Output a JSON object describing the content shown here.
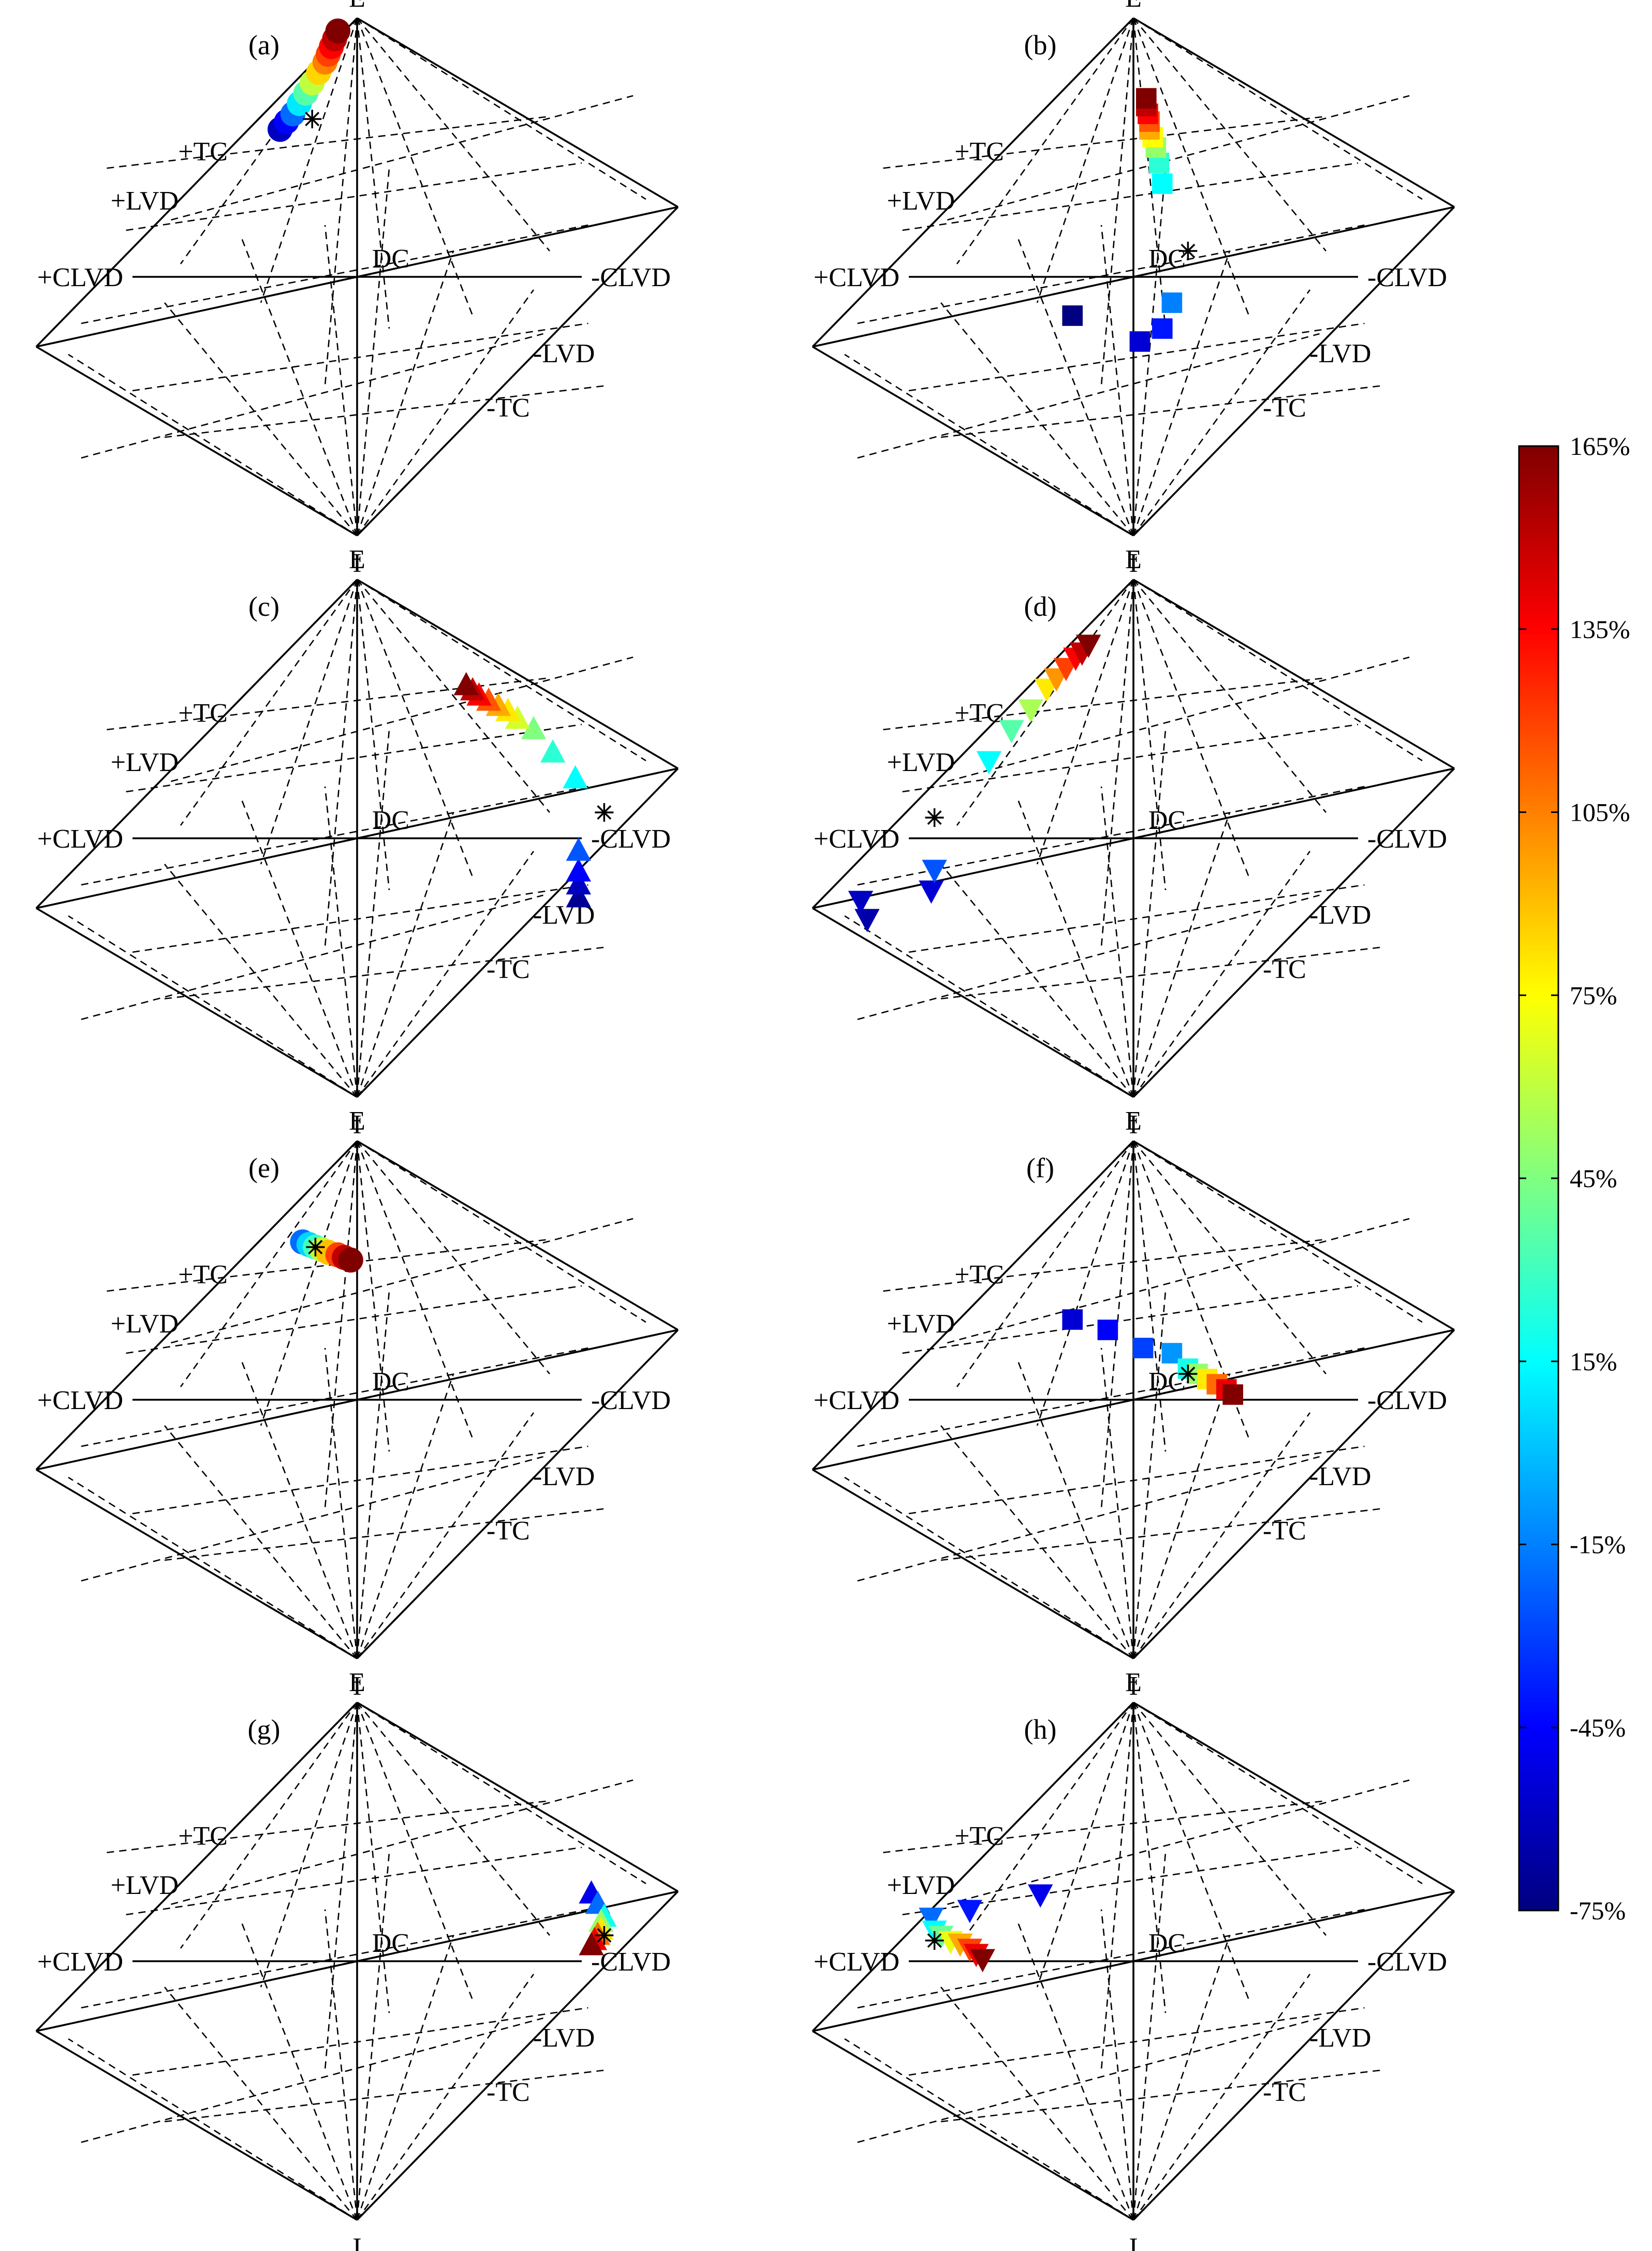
{
  "labels": {
    "top": "E",
    "bottom": "I",
    "left": "+CLVD",
    "right": "-CLVD",
    "center": "DC",
    "upper_left_1": "+TC",
    "upper_left_2": "+LVD",
    "lower_right_1": "-LVD",
    "lower_right_2": "-TC"
  },
  "colorbar": {
    "ticks": [
      "165%",
      "135%",
      "105%",
      "75%",
      "45%",
      "15%",
      "-15%",
      "-45%",
      "-75%"
    ],
    "stops": [
      "#800000",
      "#ff0000",
      "#ff8000",
      "#ffff00",
      "#80ff80",
      "#00ffff",
      "#0080ff",
      "#0000ff",
      "#000080"
    ]
  },
  "panels": [
    {
      "id": "(a)",
      "marker": "circle",
      "points": [
        [
          -0.06,
          0.95,
          165
        ],
        [
          -0.07,
          0.92,
          150
        ],
        [
          -0.08,
          0.89,
          135
        ],
        [
          -0.09,
          0.86,
          120
        ],
        [
          -0.1,
          0.83,
          105
        ],
        [
          -0.12,
          0.79,
          85
        ],
        [
          -0.14,
          0.75,
          60
        ],
        [
          -0.16,
          0.71,
          35
        ],
        [
          -0.18,
          0.67,
          10
        ],
        [
          -0.2,
          0.63,
          -20
        ],
        [
          -0.22,
          0.6,
          -45
        ],
        [
          -0.24,
          0.57,
          -60
        ]
      ],
      "star": [
        -0.14,
        0.61
      ]
    },
    {
      "id": "(b)",
      "marker": "square",
      "points": [
        [
          0.04,
          0.69,
          165
        ],
        [
          0.04,
          0.66,
          150
        ],
        [
          0.045,
          0.63,
          135
        ],
        [
          0.05,
          0.6,
          115
        ],
        [
          0.05,
          0.57,
          95
        ],
        [
          0.06,
          0.54,
          75
        ],
        [
          0.07,
          0.5,
          50
        ],
        [
          0.08,
          0.44,
          25
        ],
        [
          0.09,
          0.36,
          15
        ],
        [
          0.12,
          -0.1,
          -15
        ],
        [
          0.09,
          -0.2,
          -40
        ],
        [
          0.02,
          -0.25,
          -55
        ],
        [
          -0.19,
          -0.15,
          -75
        ]
      ],
      "star": [
        0.17,
        0.1
      ]
    },
    {
      "id": "(c)",
      "marker": "triangle-up",
      "points": [
        [
          0.34,
          0.59,
          165
        ],
        [
          0.36,
          0.57,
          150
        ],
        [
          0.38,
          0.55,
          135
        ],
        [
          0.41,
          0.53,
          115
        ],
        [
          0.44,
          0.51,
          95
        ],
        [
          0.47,
          0.49,
          80
        ],
        [
          0.5,
          0.46,
          65
        ],
        [
          0.55,
          0.42,
          45
        ],
        [
          0.61,
          0.33,
          25
        ],
        [
          0.68,
          0.23,
          15
        ],
        [
          0.69,
          -0.05,
          -25
        ],
        [
          0.69,
          -0.13,
          -45
        ],
        [
          0.69,
          -0.18,
          -60
        ],
        [
          0.69,
          -0.23,
          -70
        ]
      ],
      "star": [
        0.77,
        0.1
      ]
    },
    {
      "id": "(d)",
      "marker": "triangle-down",
      "points": [
        [
          -0.14,
          0.75,
          165
        ],
        [
          -0.16,
          0.72,
          150
        ],
        [
          -0.18,
          0.7,
          135
        ],
        [
          -0.21,
          0.66,
          120
        ],
        [
          -0.24,
          0.62,
          100
        ],
        [
          -0.27,
          0.58,
          80
        ],
        [
          -0.32,
          0.5,
          55
        ],
        [
          -0.38,
          0.42,
          35
        ],
        [
          -0.45,
          0.3,
          15
        ],
        [
          -0.62,
          -0.12,
          -25
        ],
        [
          -0.63,
          -0.2,
          -55
        ],
        [
          -0.85,
          -0.24,
          -60
        ],
        [
          -0.83,
          -0.31,
          -65
        ]
      ],
      "star": [
        -0.62,
        0.08
      ]
    },
    {
      "id": "(e)",
      "marker": "circle",
      "points": [
        [
          -0.02,
          0.54,
          165
        ],
        [
          -0.04,
          0.55,
          150
        ],
        [
          -0.06,
          0.56,
          120
        ],
        [
          -0.09,
          0.57,
          90
        ],
        [
          -0.11,
          0.58,
          60
        ],
        [
          -0.13,
          0.59,
          30
        ],
        [
          -0.15,
          0.6,
          5
        ],
        [
          -0.17,
          0.61,
          -20
        ]
      ],
      "star": [
        -0.13,
        0.59
      ]
    },
    {
      "id": "(f)",
      "marker": "square",
      "points": [
        [
          0.31,
          0.02,
          165
        ],
        [
          0.29,
          0.04,
          140
        ],
        [
          0.26,
          0.06,
          110
        ],
        [
          0.23,
          0.08,
          80
        ],
        [
          0.2,
          0.1,
          50
        ],
        [
          0.17,
          0.12,
          20
        ],
        [
          0.12,
          0.18,
          -10
        ],
        [
          0.03,
          0.2,
          -30
        ],
        [
          -0.08,
          0.27,
          -45
        ],
        [
          -0.19,
          0.31,
          -55
        ]
      ],
      "star": [
        0.17,
        0.1
      ]
    },
    {
      "id": "(g)",
      "marker": "triangle-up",
      "points": [
        [
          0.73,
          0.06,
          165
        ],
        [
          0.74,
          0.08,
          140
        ],
        [
          0.75,
          0.1,
          110
        ],
        [
          0.76,
          0.12,
          80
        ],
        [
          0.76,
          0.15,
          50
        ],
        [
          0.77,
          0.17,
          20
        ],
        [
          0.75,
          0.22,
          -20
        ],
        [
          0.73,
          0.26,
          -50
        ]
      ],
      "star": [
        0.77,
        0.1
      ]
    },
    {
      "id": "(h)",
      "marker": "triangle-down",
      "points": [
        [
          -0.47,
          0.01,
          165
        ],
        [
          -0.49,
          0.03,
          140
        ],
        [
          -0.51,
          0.05,
          120
        ],
        [
          -0.54,
          0.07,
          95
        ],
        [
          -0.57,
          0.08,
          70
        ],
        [
          -0.6,
          0.1,
          40
        ],
        [
          -0.62,
          0.12,
          15
        ],
        [
          -0.63,
          0.17,
          -20
        ],
        [
          -0.51,
          0.2,
          -40
        ],
        [
          -0.29,
          0.26,
          -50
        ]
      ],
      "star": [
        -0.62,
        0.08
      ]
    }
  ]
}
